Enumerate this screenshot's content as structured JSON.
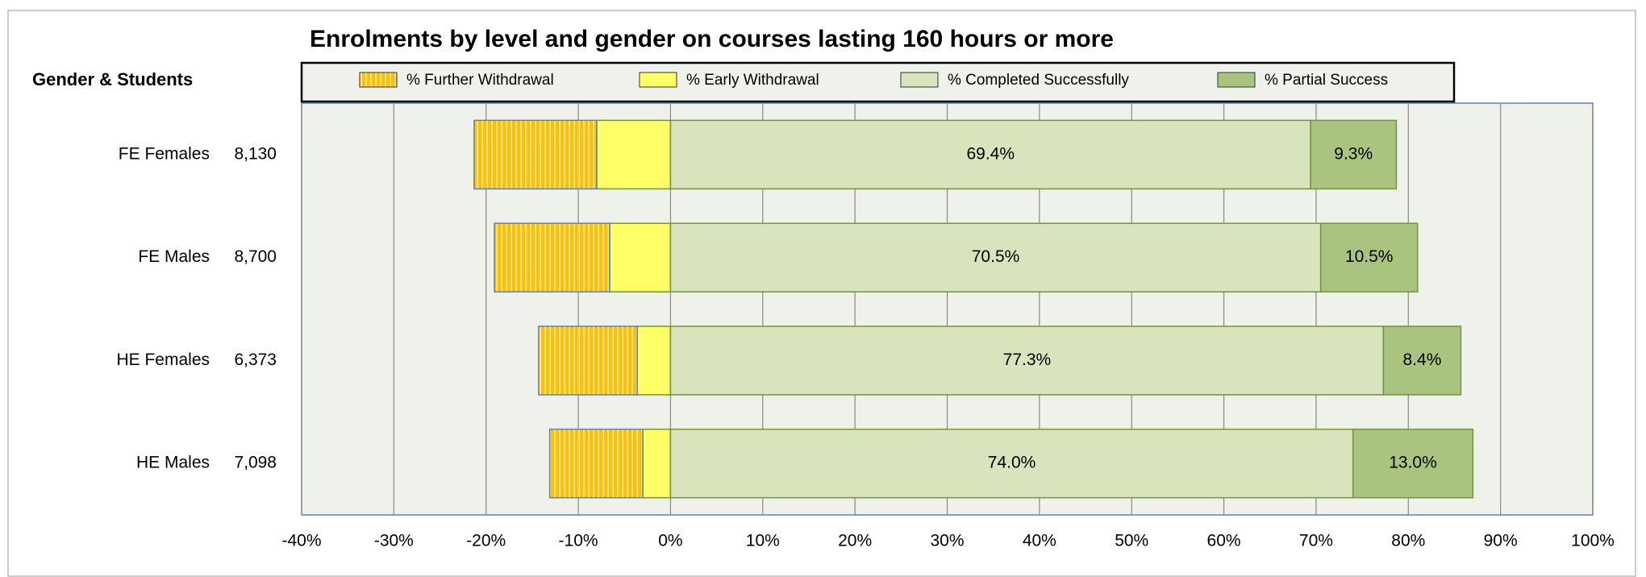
{
  "chart_data": {
    "type": "diverging_stacked_bar",
    "title": "Enrolments by level and gender on courses lasting 160 hours or more",
    "y_axis_label": "Gender & Students",
    "categories": [
      "FE Females",
      "FE Males",
      "HE Females",
      "HE Males"
    ],
    "student_counts": [
      "8,130",
      "8,700",
      "6,373",
      "7,098"
    ],
    "series": [
      {
        "name": "% Further Withdrawal",
        "color": "#FFC000",
        "values": [
          -13.3,
          -12.5,
          -10.7,
          -10.1
        ]
      },
      {
        "name": "% Early Withdrawal",
        "color": "#FFFF66",
        "values": [
          -8.0,
          -6.6,
          -3.6,
          -3.0
        ]
      },
      {
        "name": "% Completed Successfully",
        "color": "#D8E4BC",
        "values": [
          69.4,
          70.5,
          77.3,
          74.0
        ],
        "value_labels": [
          "69.4%",
          "70.5%",
          "77.3%",
          "74.0%"
        ]
      },
      {
        "name": "% Partial Success",
        "color": "#A9C47F",
        "values": [
          9.3,
          10.5,
          8.4,
          13.0
        ],
        "value_labels": [
          "9.3%",
          "10.5%",
          "8.4%",
          "13.0%"
        ]
      }
    ],
    "xlim": [
      -40,
      100
    ],
    "xticks": [
      {
        "value": -40,
        "label": "-40%"
      },
      {
        "value": -30,
        "label": "-30%"
      },
      {
        "value": -20,
        "label": "-20%"
      },
      {
        "value": -10,
        "label": "-10%"
      },
      {
        "value": 0,
        "label": "0%"
      },
      {
        "value": 10,
        "label": "10%"
      },
      {
        "value": 20,
        "label": "20%"
      },
      {
        "value": 30,
        "label": "30%"
      },
      {
        "value": 40,
        "label": "40%"
      },
      {
        "value": 50,
        "label": "50%"
      },
      {
        "value": 60,
        "label": "60%"
      },
      {
        "value": 70,
        "label": "70%"
      },
      {
        "value": 80,
        "label": "80%"
      },
      {
        "value": 90,
        "label": "90%"
      },
      {
        "value": 100,
        "label": "100%"
      }
    ],
    "grid": true
  }
}
